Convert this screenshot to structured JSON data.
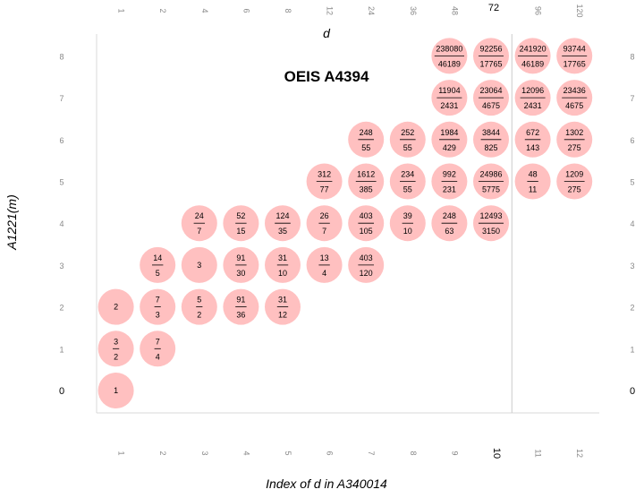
{
  "chart_data": {
    "type": "scatter",
    "title": "OEIS A4394",
    "top_axis_label": "d",
    "bottom_axis_label": "Index of d in A340014",
    "left_axis_label": "A1221(m)",
    "top_ticks": [
      "1",
      "2",
      "4",
      "6",
      "8",
      "12",
      "24",
      "36",
      "48",
      "72",
      "96",
      "120"
    ],
    "bottom_ticks": [
      "1",
      "2",
      "3",
      "4",
      "5",
      "6",
      "7",
      "8",
      "9",
      "10",
      "11",
      "12"
    ],
    "highlight_index": 10,
    "y_ticks": [
      "0",
      "1",
      "2",
      "3",
      "4",
      "5",
      "6",
      "7",
      "8"
    ],
    "highlight_y": 0,
    "point_color": "#ffc0c0",
    "divider_color": "#cccccc",
    "points": [
      {
        "x": 1,
        "y": 0,
        "label": "1"
      },
      {
        "x": 1,
        "y": 1,
        "num": "3",
        "den": "2"
      },
      {
        "x": 2,
        "y": 1,
        "num": "7",
        "den": "4"
      },
      {
        "x": 1,
        "y": 2,
        "label": "2"
      },
      {
        "x": 2,
        "y": 2,
        "num": "7",
        "den": "3"
      },
      {
        "x": 3,
        "y": 2,
        "num": "5",
        "den": "2"
      },
      {
        "x": 4,
        "y": 2,
        "num": "91",
        "den": "36"
      },
      {
        "x": 5,
        "y": 2,
        "num": "31",
        "den": "12"
      },
      {
        "x": 2,
        "y": 3,
        "num": "14",
        "den": "5"
      },
      {
        "x": 3,
        "y": 3,
        "label": "3"
      },
      {
        "x": 4,
        "y": 3,
        "num": "91",
        "den": "30"
      },
      {
        "x": 5,
        "y": 3,
        "num": "31",
        "den": "10"
      },
      {
        "x": 6,
        "y": 3,
        "num": "13",
        "den": "4"
      },
      {
        "x": 7,
        "y": 3,
        "num": "403",
        "den": "120"
      },
      {
        "x": 3,
        "y": 4,
        "num": "24",
        "den": "7"
      },
      {
        "x": 4,
        "y": 4,
        "num": "52",
        "den": "15"
      },
      {
        "x": 5,
        "y": 4,
        "num": "124",
        "den": "35"
      },
      {
        "x": 6,
        "y": 4,
        "num": "26",
        "den": "7"
      },
      {
        "x": 7,
        "y": 4,
        "num": "403",
        "den": "105"
      },
      {
        "x": 8,
        "y": 4,
        "num": "39",
        "den": "10"
      },
      {
        "x": 9,
        "y": 4,
        "num": "248",
        "den": "63"
      },
      {
        "x": 10,
        "y": 4,
        "num": "12493",
        "den": "3150"
      },
      {
        "x": 6,
        "y": 5,
        "num": "312",
        "den": "77"
      },
      {
        "x": 7,
        "y": 5,
        "num": "1612",
        "den": "385"
      },
      {
        "x": 8,
        "y": 5,
        "num": "234",
        "den": "55"
      },
      {
        "x": 9,
        "y": 5,
        "num": "992",
        "den": "231"
      },
      {
        "x": 10,
        "y": 5,
        "num": "24986",
        "den": "5775"
      },
      {
        "x": 11,
        "y": 5,
        "num": "48",
        "den": "11"
      },
      {
        "x": 12,
        "y": 5,
        "num": "1209",
        "den": "275"
      },
      {
        "x": 7,
        "y": 6,
        "num": "248",
        "den": "55"
      },
      {
        "x": 8,
        "y": 6,
        "num": "252",
        "den": "55"
      },
      {
        "x": 9,
        "y": 6,
        "num": "1984",
        "den": "429"
      },
      {
        "x": 10,
        "y": 6,
        "num": "3844",
        "den": "825"
      },
      {
        "x": 11,
        "y": 6,
        "num": "672",
        "den": "143"
      },
      {
        "x": 12,
        "y": 6,
        "num": "1302",
        "den": "275"
      },
      {
        "x": 9,
        "y": 7,
        "num": "11904",
        "den": "2431"
      },
      {
        "x": 10,
        "y": 7,
        "num": "23064",
        "den": "4675"
      },
      {
        "x": 11,
        "y": 7,
        "num": "12096",
        "den": "2431"
      },
      {
        "x": 12,
        "y": 7,
        "num": "23436",
        "den": "4675"
      },
      {
        "x": 9,
        "y": 8,
        "num": "238080",
        "den": "46189"
      },
      {
        "x": 10,
        "y": 8,
        "num": "92256",
        "den": "17765"
      },
      {
        "x": 11,
        "y": 8,
        "num": "241920",
        "den": "46189"
      },
      {
        "x": 12,
        "y": 8,
        "num": "93744",
        "den": "17765"
      }
    ]
  }
}
